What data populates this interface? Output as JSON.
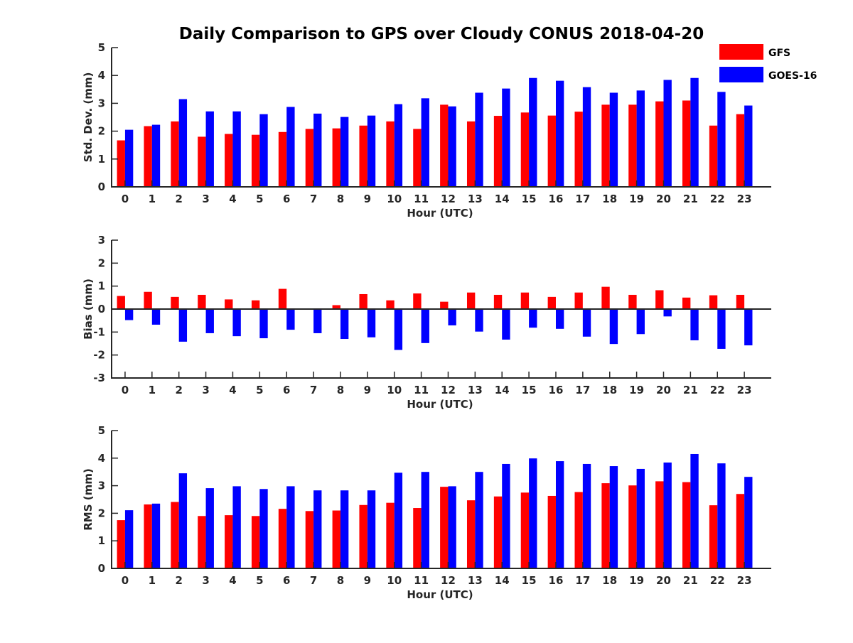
{
  "title": "Daily Comparison to GPS over Cloudy CONUS 2018-04-20",
  "legend": {
    "placement": "top-right",
    "entries": [
      {
        "name": "GFS",
        "color": "#ff0000"
      },
      {
        "name": "GOES-16",
        "color": "#0000ff"
      }
    ]
  },
  "chart_data": [
    {
      "type": "bar",
      "xlabel": "Hour (UTC)",
      "ylabel": "Std. Dev. (mm)",
      "ylim": [
        0,
        5
      ],
      "yticks": [
        0,
        1,
        2,
        3,
        4,
        5
      ],
      "categories": [
        "0",
        "1",
        "2",
        "3",
        "4",
        "5",
        "6",
        "7",
        "8",
        "9",
        "10",
        "11",
        "12",
        "13",
        "14",
        "15",
        "16",
        "17",
        "18",
        "19",
        "20",
        "21",
        "22",
        "23"
      ],
      "series": [
        {
          "name": "GFS",
          "color": "#ff0000",
          "values": [
            1.67,
            2.18,
            2.35,
            1.8,
            1.9,
            1.87,
            1.97,
            2.08,
            2.1,
            2.2,
            2.35,
            2.08,
            2.95,
            2.35,
            2.55,
            2.67,
            2.56,
            2.7,
            2.95,
            2.95,
            3.07,
            3.1,
            2.2,
            2.61
          ]
        },
        {
          "name": "GOES-16",
          "color": "#0000ff",
          "values": [
            2.05,
            2.23,
            3.15,
            2.71,
            2.71,
            2.61,
            2.87,
            2.63,
            2.51,
            2.56,
            2.97,
            3.18,
            2.89,
            3.38,
            3.53,
            3.91,
            3.81,
            3.58,
            3.38,
            3.46,
            3.84,
            3.91,
            3.41,
            2.92
          ]
        }
      ]
    },
    {
      "type": "bar",
      "xlabel": "Hour (UTC)",
      "ylabel": "Bias (mm)",
      "ylim": [
        -3,
        3
      ],
      "yticks": [
        -3,
        -2,
        -1,
        0,
        1,
        2,
        3
      ],
      "categories": [
        "0",
        "1",
        "2",
        "3",
        "4",
        "5",
        "6",
        "7",
        "8",
        "9",
        "10",
        "11",
        "12",
        "13",
        "14",
        "15",
        "16",
        "17",
        "18",
        "19",
        "20",
        "21",
        "22",
        "23"
      ],
      "series": [
        {
          "name": "GFS",
          "color": "#ff0000",
          "values": [
            0.57,
            0.75,
            0.53,
            0.62,
            0.42,
            0.38,
            0.88,
            0.0,
            0.17,
            0.65,
            0.38,
            0.68,
            0.32,
            0.72,
            0.62,
            0.72,
            0.53,
            0.72,
            0.97,
            0.62,
            0.82,
            0.5,
            0.6,
            0.62
          ]
        },
        {
          "name": "GOES-16",
          "color": "#0000ff",
          "values": [
            -0.48,
            -0.68,
            -1.42,
            -1.05,
            -1.18,
            -1.27,
            -0.9,
            -1.05,
            -1.3,
            -1.23,
            -1.78,
            -1.48,
            -0.71,
            -0.98,
            -1.33,
            -0.81,
            -0.86,
            -1.2,
            -1.52,
            -1.09,
            -0.32,
            -1.36,
            -1.73,
            -1.58
          ]
        }
      ]
    },
    {
      "type": "bar",
      "xlabel": "Hour (UTC)",
      "ylabel": "RMS (mm)",
      "ylim": [
        0,
        5
      ],
      "yticks": [
        0,
        1,
        2,
        3,
        4,
        5
      ],
      "categories": [
        "0",
        "1",
        "2",
        "3",
        "4",
        "5",
        "6",
        "7",
        "8",
        "9",
        "10",
        "11",
        "12",
        "13",
        "14",
        "15",
        "16",
        "17",
        "18",
        "19",
        "20",
        "21",
        "22",
        "23"
      ],
      "series": [
        {
          "name": "GFS",
          "color": "#ff0000",
          "values": [
            1.75,
            2.32,
            2.41,
            1.9,
            1.93,
            1.9,
            2.16,
            2.08,
            2.1,
            2.3,
            2.38,
            2.19,
            2.96,
            2.47,
            2.61,
            2.75,
            2.63,
            2.77,
            3.09,
            3.01,
            3.16,
            3.13,
            2.29,
            2.7
          ]
        },
        {
          "name": "GOES-16",
          "color": "#0000ff",
          "values": [
            2.11,
            2.35,
            3.45,
            2.91,
            2.98,
            2.88,
            2.98,
            2.83,
            2.83,
            2.83,
            3.47,
            3.5,
            2.98,
            3.5,
            3.79,
            3.99,
            3.89,
            3.79,
            3.71,
            3.61,
            3.84,
            4.15,
            3.81,
            3.32
          ]
        }
      ]
    }
  ]
}
